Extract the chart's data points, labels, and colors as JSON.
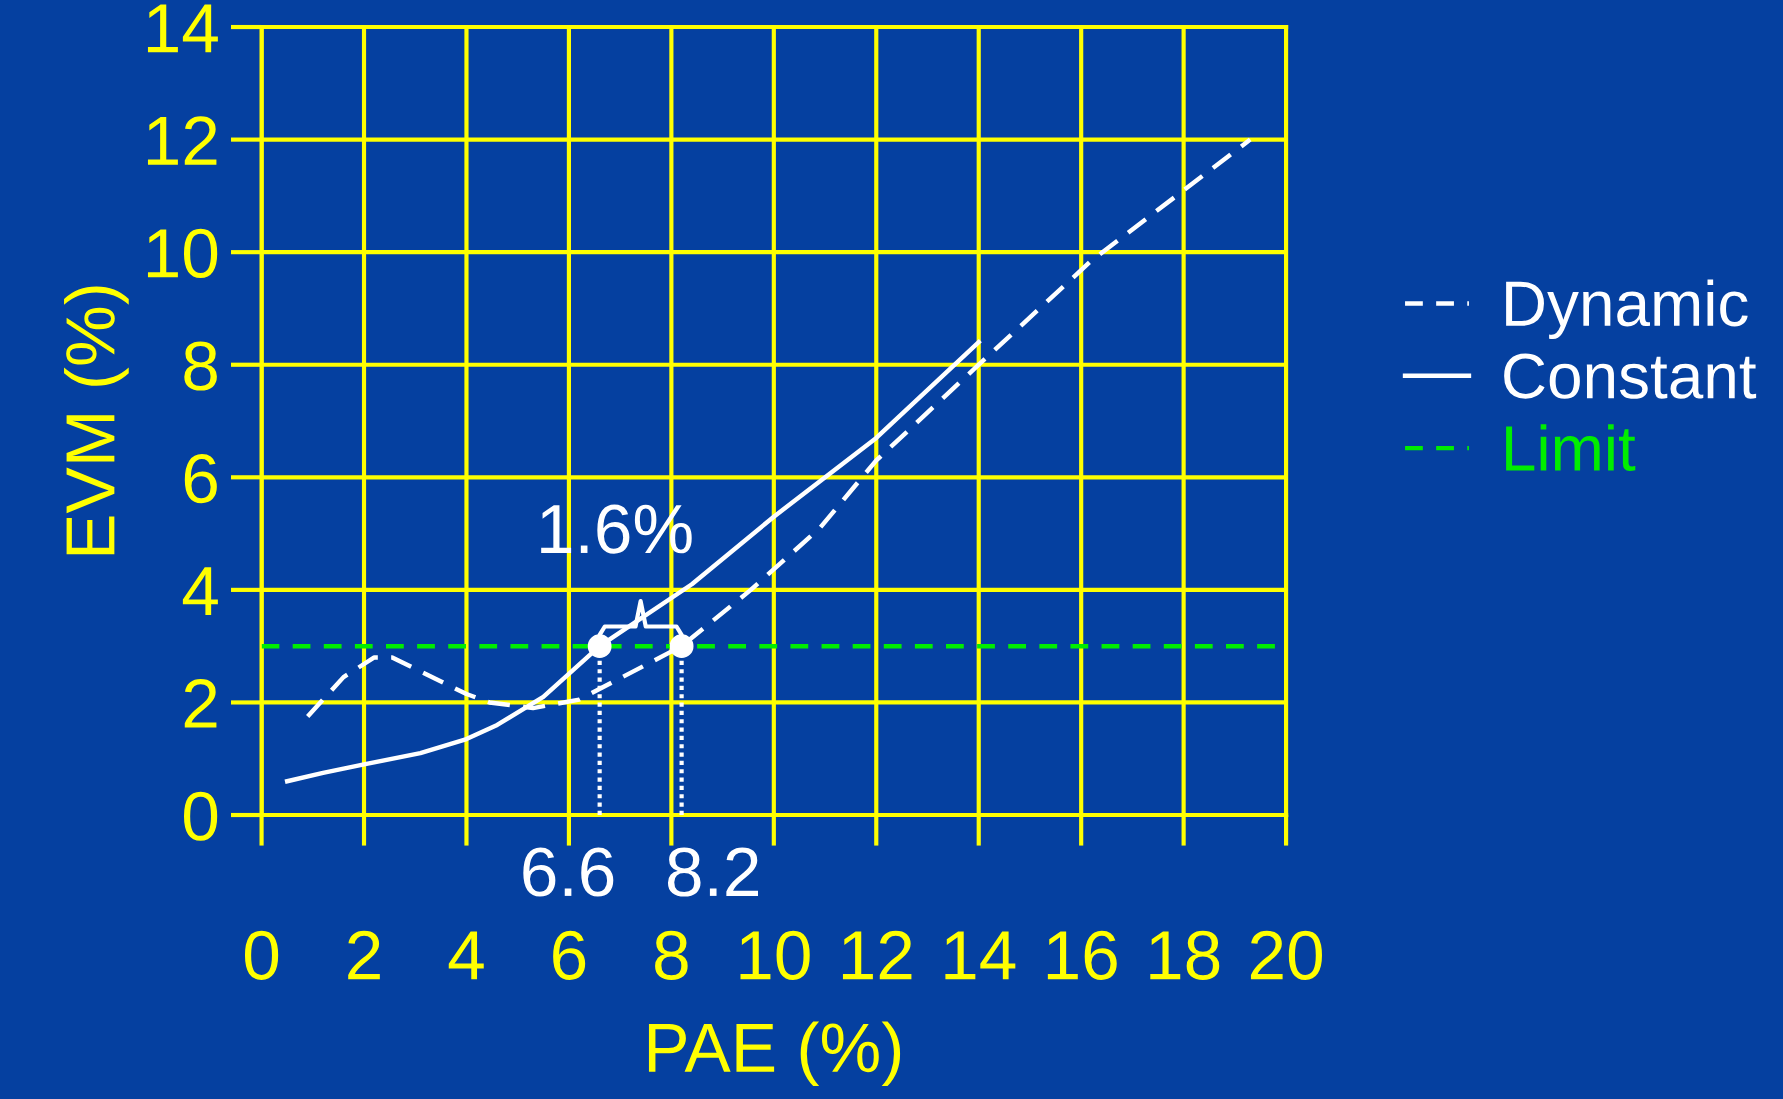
{
  "chart_data": {
    "type": "line",
    "xlabel": "PAE (%)",
    "ylabel": "EVM (%)",
    "xlim": [
      0,
      20
    ],
    "ylim": [
      0,
      14
    ],
    "xticks": [
      0,
      2,
      4,
      6,
      8,
      10,
      12,
      14,
      16,
      18,
      20
    ],
    "yticks": [
      0,
      2,
      4,
      6,
      8,
      10,
      12,
      14
    ],
    "grid": true,
    "legend": "right",
    "series": [
      {
        "name": "Dynamic",
        "color": "#ffffff",
        "line_style": "dashed",
        "x": [
          0.9,
          1.6,
          2.2,
          2.55,
          4.0,
          4.45,
          5.3,
          6.2,
          8.2,
          9.55,
          10.9,
          12.0,
          14.0,
          16.2,
          19.3
        ],
        "values": [
          1.75,
          2.45,
          2.8,
          2.8,
          2.15,
          2.0,
          1.9,
          2.05,
          3.0,
          4.0,
          5.1,
          6.3,
          8.0,
          9.85,
          12.0
        ]
      },
      {
        "name": "Constant",
        "color": "#ffffff",
        "line_style": "solid",
        "x": [
          0.5,
          1.2,
          2.0,
          3.1,
          4.0,
          4.6,
          5.5,
          6.6,
          8.4,
          10.0,
          12.0,
          14.0
        ],
        "values": [
          0.6,
          0.75,
          0.9,
          1.1,
          1.35,
          1.6,
          2.1,
          3.0,
          4.1,
          5.3,
          6.7,
          8.4
        ]
      },
      {
        "type": "scatter",
        "color": "#ffffff",
        "marker": "circle",
        "x": [
          6.6,
          8.2
        ],
        "values": [
          3,
          3
        ]
      }
    ],
    "ref_lines": [
      {
        "axis": "y",
        "value": 3,
        "label": "Limit",
        "color": "#00ee00",
        "line_style": "dashed"
      }
    ],
    "annotations": [
      {
        "text": "6.6",
        "x": 6.6,
        "y": 3
      },
      {
        "text": "8.2",
        "x": 8.2,
        "y": 3
      },
      {
        "text": "1.6%",
        "x": 7.4,
        "y": 3.4
      }
    ]
  }
}
